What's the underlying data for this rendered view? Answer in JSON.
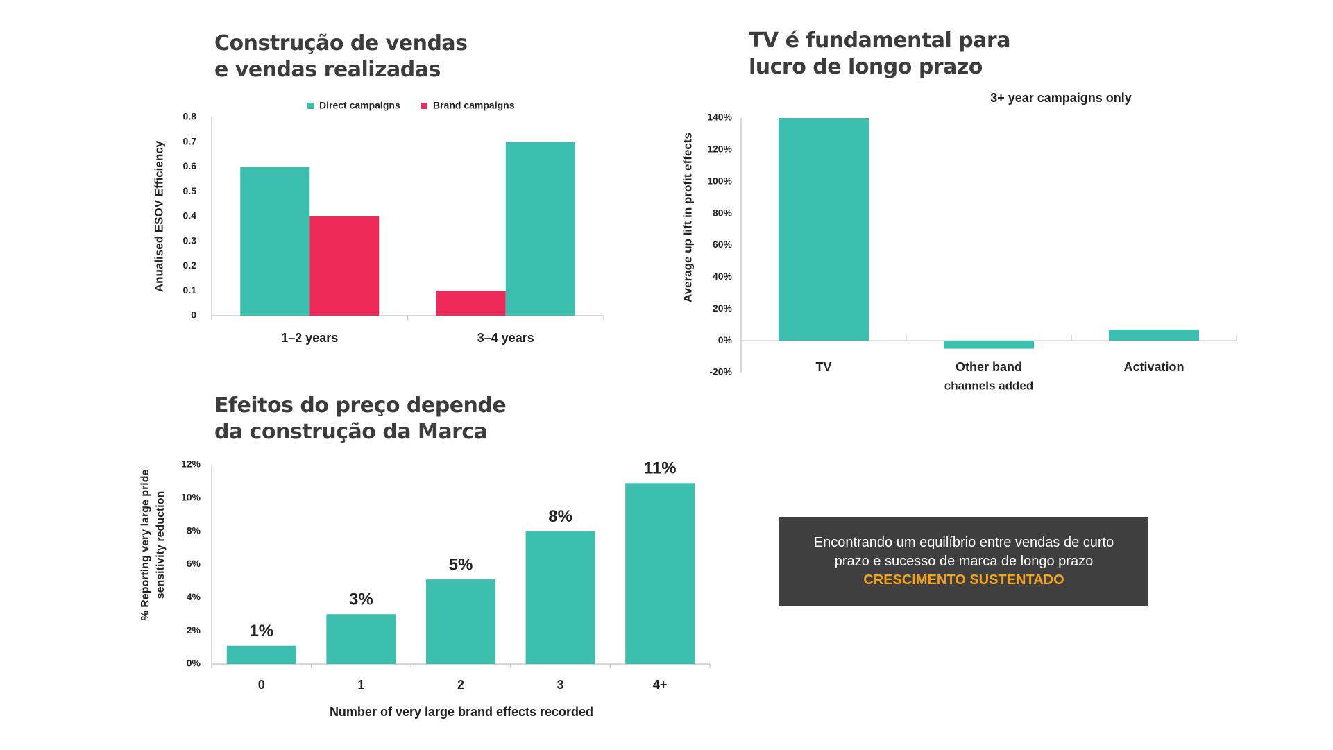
{
  "titles": {
    "chart1": [
      "Construção de vendas",
      "e vendas realizadas"
    ],
    "chart2": [
      "TV é fundamental para",
      "lucro de longo prazo"
    ],
    "chart3": [
      "Efeitos do preço depende",
      "da construção da Marca"
    ]
  },
  "callout": {
    "line1": "Encontrando um equilíbrio entre vendas de curto",
    "line2": "prazo e sucesso de marca de longo prazo",
    "highlight": "CRESCIMENTO SUSTENTADO"
  },
  "colors": {
    "teal": "#3dbfaf",
    "pink": "#ee2a5a",
    "axis": "#bfbfbf",
    "highlight": "#f7a21b",
    "callout_bg": "#3f3f3f"
  },
  "chart_data": [
    {
      "type": "bar",
      "categories": [
        "1–2 years",
        "3–4 years"
      ],
      "series": [
        {
          "name": "Direct campaigns",
          "values": [
            0.6,
            0.7
          ],
          "color": "#3dbfaf"
        },
        {
          "name": "Brand campaigns",
          "values": [
            0.4,
            0.1
          ],
          "color": "#ee2a5a"
        }
      ],
      "series_order": [
        [
          0,
          1
        ],
        [
          1,
          0
        ]
      ],
      "ylabel": "Anualised ESOV Efficiency",
      "yticks": [
        "0",
        "0.1",
        "0.2",
        "0.3",
        "0.4",
        "0.5",
        "0.6",
        "0.7",
        "0.8"
      ],
      "ylim": [
        0,
        0.8
      ],
      "legend": "top",
      "grid": false
    },
    {
      "type": "bar",
      "subtitle": "3+ year campaigns only",
      "categories": [
        "TV",
        "Other band",
        "Activation"
      ],
      "xlabel": "channels added",
      "values": [
        140,
        -5,
        7
      ],
      "ylabel": "Average up lift in profit effects",
      "yticks": [
        "-20%",
        "0%",
        "20%",
        "40%",
        "60%",
        "80%",
        "100%",
        "120%",
        "140%"
      ],
      "ylim": [
        -20,
        140
      ],
      "grid": false
    },
    {
      "type": "bar",
      "categories": [
        "0",
        "1",
        "2",
        "3",
        "4+"
      ],
      "values": [
        1.1,
        3.0,
        5.1,
        8.0,
        10.9
      ],
      "data_labels": [
        "1%",
        "3%",
        "5%",
        "8%",
        "11%"
      ],
      "xlabel": "Number of very large brand effects recorded",
      "ylabel": [
        "% Reporting very large pride",
        "sensitivity reduction"
      ],
      "yticks": [
        "0%",
        "2%",
        "4%",
        "6%",
        "8%",
        "10%",
        "12%"
      ],
      "ylim": [
        0,
        12
      ],
      "grid": false
    }
  ]
}
